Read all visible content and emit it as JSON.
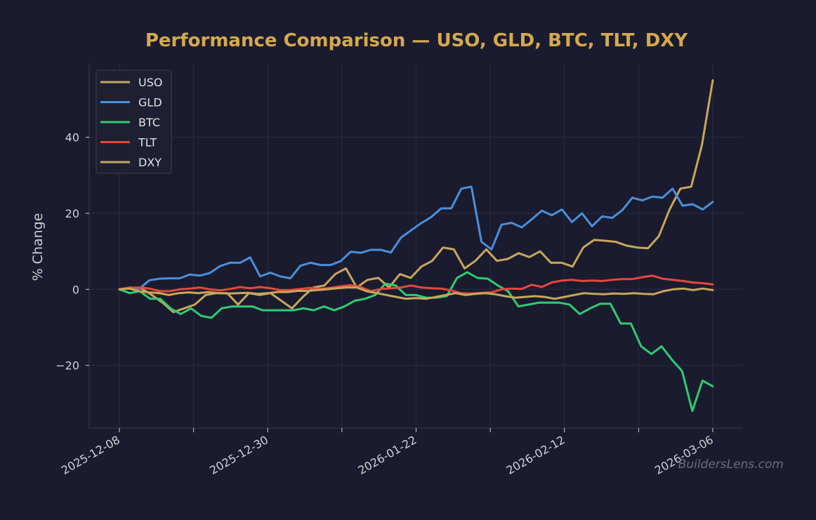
{
  "chart_data": {
    "type": "line",
    "title": "Performance Comparison — USO, GLD, BTC, TLT, DXY",
    "xlabel": "",
    "ylabel": "% Change",
    "ylim": [
      -36.5,
      59.5
    ],
    "yticks": [
      -20,
      0,
      20,
      40
    ],
    "ytick_labels": [
      "−20",
      "0",
      "20",
      "40"
    ],
    "x_start": "2025-12-08",
    "x_end": "2026-03-06",
    "xtick_labels": [
      "2025-12-08",
      "2025-12-30",
      "2026-01-22",
      "2026-02-12",
      "2026-03-06"
    ],
    "grid": true,
    "legend_position": "top-left",
    "series": [
      {
        "name": "USO",
        "color": "#c9a65a",
        "values": [
          0,
          0.5,
          0.3,
          -1.5,
          -3.5,
          -6,
          -5,
          -4,
          -1.5,
          -1,
          -1,
          -4,
          -1,
          -1.5,
          -1,
          -3,
          -5,
          -2,
          0.5,
          1,
          4,
          5.5,
          0.5,
          2.5,
          3,
          0.5,
          4,
          3,
          6,
          7.5,
          11,
          10.5,
          5.5,
          7.5,
          10.5,
          7.5,
          8,
          9.5,
          8.5,
          10,
          7,
          7,
          6,
          11,
          13,
          12.8,
          12.5,
          11.5,
          11,
          10.8,
          14,
          21,
          26.5,
          27,
          38,
          55
        ]
      },
      {
        "name": "GLD",
        "color": "#4a8fdd",
        "values": [
          0,
          0.4,
          0.2,
          2.4,
          2.8,
          2.9,
          2.9,
          3.9,
          3.6,
          4.3,
          6.1,
          7,
          7,
          8.4,
          3.4,
          4.4,
          3.4,
          2.9,
          6.2,
          7,
          6.4,
          6.4,
          7.4,
          9.9,
          9.6,
          10.4,
          10.4,
          9.7,
          13.6,
          15.5,
          17.4,
          19,
          21.3,
          21.3,
          26.5,
          27,
          12.5,
          10.5,
          17,
          17.5,
          16.3,
          18.4,
          20.7,
          19.5,
          21,
          17.7,
          20,
          16.6,
          19.2,
          18.8,
          20.8,
          24.1,
          23.4,
          24.4,
          24.1,
          26.5,
          22,
          22.4,
          21,
          23
        ]
      },
      {
        "name": "BTC",
        "color": "#2ecc71",
        "values": [
          0,
          -1,
          -0.5,
          -2.5,
          -2.5,
          -5,
          -6.5,
          -5,
          -7,
          -7.5,
          -5,
          -4.5,
          -4.5,
          -4.5,
          -5.5,
          -5.5,
          -5.5,
          -5.5,
          -5,
          -5.5,
          -4.5,
          -5.5,
          -4.5,
          -3,
          -2.5,
          -1.5,
          1.5,
          1,
          -1.5,
          -1.5,
          -2.2,
          -2.2,
          -1.8,
          3,
          4.5,
          3,
          2.8,
          1,
          -0.5,
          -4.5,
          -4,
          -3.5,
          -3.5,
          -3.5,
          -4,
          -6.5,
          -5,
          -3.8,
          -3.8,
          -9,
          -9,
          -15,
          -17,
          -15,
          -18.5,
          -21.5,
          -32,
          -24,
          -25.5
        ]
      },
      {
        "name": "TLT",
        "color": "#e5483c",
        "values": [
          0,
          0.4,
          0.5,
          0.2,
          -0.5,
          -0.5,
          0,
          0.2,
          0.5,
          0,
          -0.3,
          0.1,
          0.6,
          0.3,
          0.6,
          0.3,
          -0.2,
          -0.2,
          0.1,
          0.4,
          0.1,
          0.4,
          0.8,
          1.1,
          0.6,
          -0.5,
          0.1,
          0.3,
          0.5,
          1,
          0.5,
          0.3,
          0.2,
          -0.3,
          -1,
          -1.1,
          -0.9,
          -0.8,
          0,
          0.2,
          0.1,
          1.2,
          0.6,
          1.8,
          2.3,
          2.5,
          2.2,
          2.3,
          2.2,
          2.5,
          2.7,
          2.7,
          3.2,
          3.6,
          2.8,
          2.5,
          2.2,
          1.8,
          1.6,
          1.3
        ]
      },
      {
        "name": "DXY",
        "color": "#c9a65a",
        "values": [
          0,
          0.2,
          -0.5,
          -0.8,
          -1,
          -1.5,
          -1,
          -0.8,
          -1,
          -0.7,
          -1,
          -1.1,
          -1,
          -0.9,
          -1.2,
          -1,
          -0.7,
          -0.7,
          -0.4,
          -0.4,
          -0.2,
          0,
          0.3,
          0.5,
          0.5,
          -0.5,
          -1,
          -1.5,
          -2,
          -2.5,
          -2.3,
          -2.5,
          -2,
          -1.5,
          -1,
          -1.5,
          -1.2,
          -1,
          -1.3,
          -1.8,
          -2.2,
          -2,
          -1.8,
          -2,
          -2.5,
          -2,
          -1.5,
          -1,
          -1.2,
          -1.3,
          -1.1,
          -1.2,
          -1,
          -1.2,
          -1.3,
          -0.5,
          0,
          0.2,
          -0.2,
          0.2,
          -0.2
        ]
      }
    ]
  },
  "watermark": "BuildersLens.com"
}
